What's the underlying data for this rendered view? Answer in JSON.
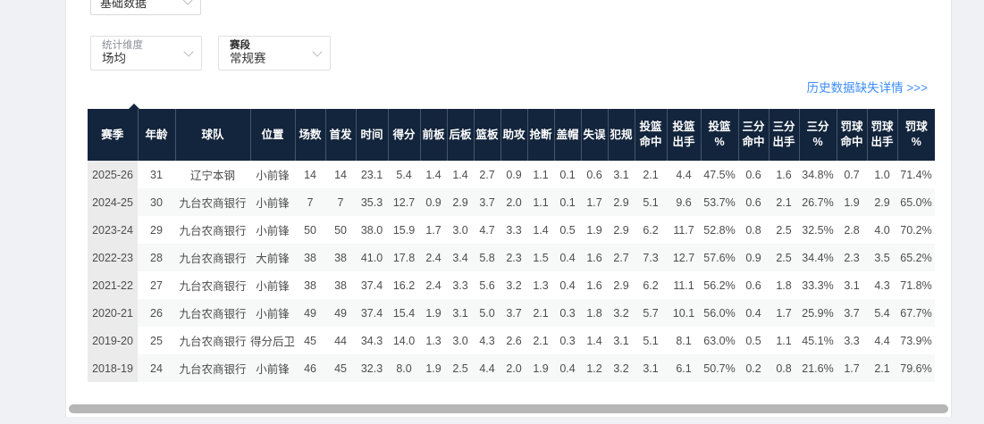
{
  "page": {
    "data_type_select": {
      "value": "基础数据"
    },
    "filters": [
      {
        "label": "统计维度",
        "value": "场均"
      },
      {
        "label": "赛段",
        "value": "常规赛"
      }
    ],
    "history_link": "历史数据缺失详情 >>>"
  },
  "table": {
    "columns": [
      "赛季",
      "年龄",
      "球队",
      "位置",
      "场数",
      "首发",
      "时间",
      "得分",
      "前板",
      "后板",
      "篮板",
      "助攻",
      "抢断",
      "盖帽",
      "失误",
      "犯规",
      "投篮\n命中",
      "投篮\n出手",
      "投篮\n%",
      "三分\n命中",
      "三分\n出手",
      "三分\n%",
      "罚球\n命中",
      "罚球\n出手",
      "罚球\n%"
    ],
    "rows": [
      [
        "2025-26",
        "31",
        "辽宁本钢",
        "小前锋",
        "14",
        "14",
        "23.1",
        "5.4",
        "1.4",
        "1.4",
        "2.7",
        "0.9",
        "1.1",
        "0.1",
        "0.6",
        "3.1",
        "2.1",
        "4.4",
        "47.5%",
        "0.6",
        "1.6",
        "34.8%",
        "0.7",
        "1.0",
        "71.4%"
      ],
      [
        "2024-25",
        "30",
        "九台农商银行",
        "小前锋",
        "7",
        "7",
        "35.3",
        "12.7",
        "0.9",
        "2.9",
        "3.7",
        "2.0",
        "1.1",
        "0.1",
        "1.7",
        "2.9",
        "5.1",
        "9.6",
        "53.7%",
        "0.6",
        "2.1",
        "26.7%",
        "1.9",
        "2.9",
        "65.0%"
      ],
      [
        "2023-24",
        "29",
        "九台农商银行",
        "小前锋",
        "50",
        "50",
        "38.0",
        "15.9",
        "1.7",
        "3.0",
        "4.7",
        "3.3",
        "1.4",
        "0.5",
        "1.9",
        "2.9",
        "6.2",
        "11.7",
        "52.8%",
        "0.8",
        "2.5",
        "32.5%",
        "2.8",
        "4.0",
        "70.2%"
      ],
      [
        "2022-23",
        "28",
        "九台农商银行",
        "大前锋",
        "38",
        "38",
        "41.0",
        "17.8",
        "2.4",
        "3.4",
        "5.8",
        "2.3",
        "1.5",
        "0.4",
        "1.6",
        "2.7",
        "7.3",
        "12.7",
        "57.6%",
        "0.9",
        "2.5",
        "34.4%",
        "2.3",
        "3.5",
        "65.2%"
      ],
      [
        "2021-22",
        "27",
        "九台农商银行",
        "小前锋",
        "38",
        "38",
        "37.4",
        "16.2",
        "2.4",
        "3.3",
        "5.6",
        "3.2",
        "1.3",
        "0.4",
        "1.6",
        "2.9",
        "6.2",
        "11.1",
        "56.2%",
        "0.6",
        "1.8",
        "33.3%",
        "3.1",
        "4.3",
        "71.8%"
      ],
      [
        "2020-21",
        "26",
        "九台农商银行",
        "小前锋",
        "49",
        "49",
        "37.4",
        "15.4",
        "1.9",
        "3.1",
        "5.0",
        "3.7",
        "2.1",
        "0.3",
        "1.8",
        "3.2",
        "5.7",
        "10.1",
        "56.0%",
        "0.4",
        "1.7",
        "25.9%",
        "3.7",
        "5.4",
        "67.7%"
      ],
      [
        "2019-20",
        "25",
        "九台农商银行",
        "得分后卫",
        "45",
        "44",
        "34.3",
        "14.0",
        "1.3",
        "3.0",
        "4.3",
        "2.6",
        "2.1",
        "0.3",
        "1.4",
        "3.1",
        "5.1",
        "8.1",
        "63.0%",
        "0.5",
        "1.1",
        "45.1%",
        "3.3",
        "4.4",
        "73.9%"
      ],
      [
        "2018-19",
        "24",
        "九台农商银行",
        "小前锋",
        "46",
        "45",
        "32.3",
        "8.0",
        "1.9",
        "2.5",
        "4.4",
        "2.0",
        "1.9",
        "0.4",
        "1.2",
        "3.2",
        "3.1",
        "6.1",
        "50.7%",
        "0.2",
        "0.8",
        "21.6%",
        "1.7",
        "2.1",
        "79.6%"
      ]
    ]
  },
  "colors": {
    "header_bg": "#13253c",
    "link_blue": "#3e8ef7",
    "season_col_bg": "#ebebeb",
    "stripe_bg": "#f7f8f8",
    "page_bg": "#eff1f4"
  }
}
